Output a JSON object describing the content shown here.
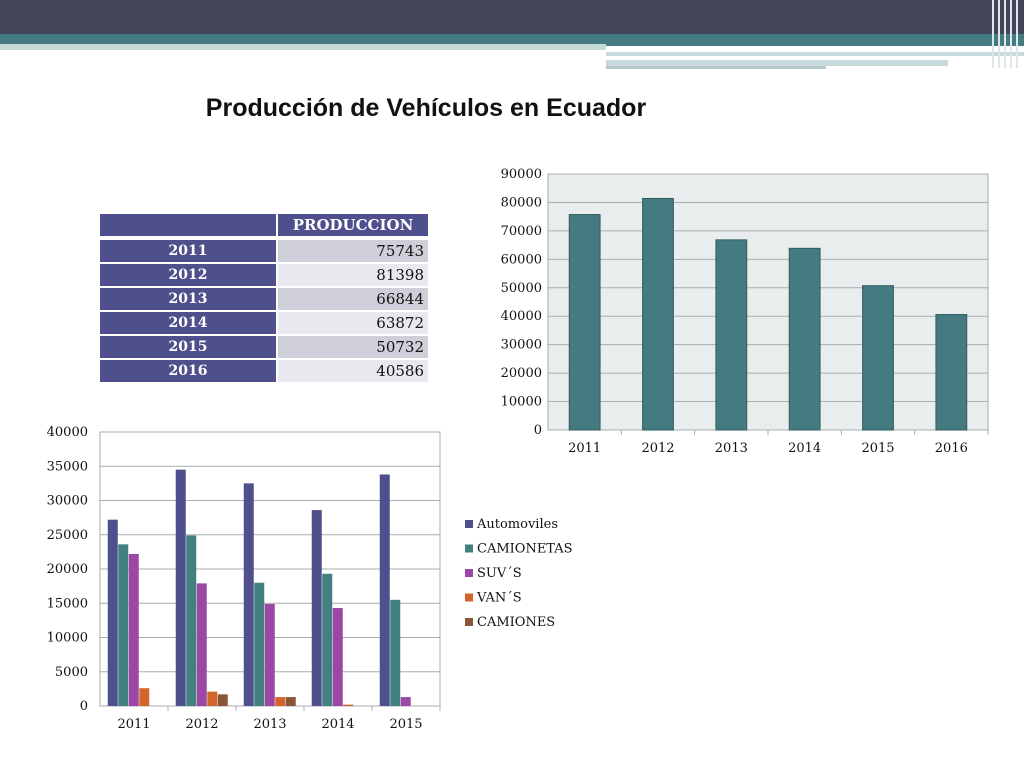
{
  "slide": {
    "title": "Producción de Vehículos en Ecuador"
  },
  "colors": {
    "top_bar": "#424459",
    "teal_band": "#447b80",
    "table_header": "#4f4f8d",
    "bar_total": "#447b80",
    "automoviles": "#4f4f8d",
    "camionetas": "#41817f",
    "suvs": "#9c47a6",
    "vans": "#d2662a",
    "camiones": "#8b5638"
  },
  "table": {
    "header_label": "PRODUCCION",
    "rows": [
      {
        "year": "2011",
        "value": "75743"
      },
      {
        "year": "2012",
        "value": "81398"
      },
      {
        "year": "2013",
        "value": "66844"
      },
      {
        "year": "2014",
        "value": "63872"
      },
      {
        "year": "2015",
        "value": "50732"
      },
      {
        "year": "2016",
        "value": "40586"
      }
    ]
  },
  "chart_data": [
    {
      "type": "bar",
      "categories": [
        "2011",
        "2012",
        "2013",
        "2014",
        "2015",
        "2016"
      ],
      "values": [
        75743,
        81398,
        66844,
        63872,
        50732,
        40586
      ],
      "ylim": [
        0,
        90000
      ],
      "yticks": [
        "0",
        "10000",
        "20000",
        "30000",
        "40000",
        "50000",
        "60000",
        "70000",
        "80000",
        "90000"
      ],
      "grid": true,
      "legend": "none",
      "color": "#447b80"
    },
    {
      "type": "bar",
      "categories": [
        "2011",
        "2012",
        "2013",
        "2014",
        "2015"
      ],
      "series": [
        {
          "name": "Automoviles",
          "color": "#4f4f8d",
          "values": [
            27200,
            34500,
            32500,
            28600,
            33800
          ]
        },
        {
          "name": "CAMIONETAS",
          "color": "#41817f",
          "values": [
            23600,
            24900,
            18000,
            19300,
            15500
          ]
        },
        {
          "name": "SUV´S",
          "color": "#9c47a6",
          "values": [
            22200,
            17900,
            14900,
            14300,
            1300
          ]
        },
        {
          "name": "VAN´S",
          "color": "#d2662a",
          "values": [
            2600,
            2100,
            1300,
            200,
            0
          ]
        },
        {
          "name": "CAMIONES",
          "color": "#8b5638",
          "values": [
            0,
            1700,
            1300,
            0,
            0
          ]
        }
      ],
      "ylim": [
        0,
        40000
      ],
      "yticks": [
        "0",
        "5000",
        "10000",
        "15000",
        "20000",
        "25000",
        "30000",
        "35000",
        "40000"
      ],
      "grid": true,
      "legend": "right"
    }
  ]
}
